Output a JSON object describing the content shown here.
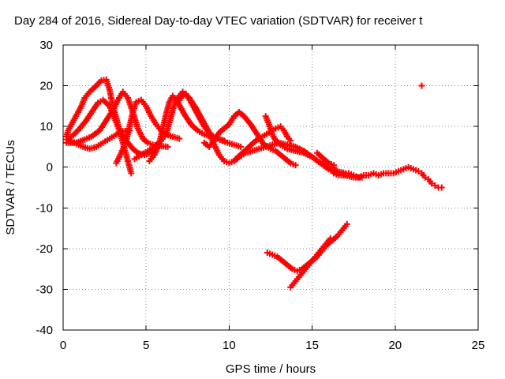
{
  "chart_data": {
    "type": "scatter",
    "title": "Day 284 of 2016, Sidereal Day-to-day VTEC variation (SDTVAR) for receiver t",
    "xlabel": "GPS time / hours",
    "ylabel": "SDTVAR / TECUs",
    "xlim": [
      0,
      25
    ],
    "ylim": [
      -40,
      30
    ],
    "x_ticks": [
      "0",
      "5",
      "10",
      "15",
      "20",
      "25"
    ],
    "y_ticks": [
      "-40",
      "-30",
      "-20",
      "-10",
      "0",
      "10",
      "20",
      "30"
    ],
    "grid": true,
    "marker": "+",
    "series_color": "#ff0000",
    "series": [
      {
        "points": [
          [
            0.2,
            7.5
          ],
          [
            0.3,
            9.0
          ],
          [
            0.5,
            10.5
          ],
          [
            0.7,
            12.0
          ],
          [
            0.9,
            13.5
          ],
          [
            1.1,
            15.0
          ],
          [
            1.3,
            17.0
          ],
          [
            1.6,
            18.5
          ],
          [
            2.0,
            20.0
          ],
          [
            2.3,
            21.3
          ],
          [
            2.6,
            21.5
          ],
          [
            2.8,
            19.0
          ],
          [
            3.0,
            15.0
          ],
          [
            3.2,
            12.0
          ],
          [
            3.4,
            9.0
          ],
          [
            3.6,
            6.0
          ],
          [
            3.8,
            3.0
          ],
          [
            4.0,
            0.0
          ],
          [
            4.1,
            -1.5
          ],
          [
            0.2,
            6.8
          ],
          [
            0.6,
            7.8
          ],
          [
            1.0,
            9.5
          ],
          [
            1.4,
            11.5
          ],
          [
            1.8,
            14.0
          ],
          [
            2.1,
            15.8
          ],
          [
            2.4,
            16.5
          ],
          [
            2.8,
            15.0
          ],
          [
            3.1,
            12.0
          ],
          [
            3.4,
            9.0
          ],
          [
            3.8,
            6.5
          ],
          [
            4.2,
            4.5
          ],
          [
            4.5,
            3.5
          ],
          [
            4.9,
            3.0
          ],
          [
            5.3,
            3.5
          ],
          [
            5.7,
            5.0
          ],
          [
            0.2,
            6.0
          ],
          [
            0.8,
            6.0
          ],
          [
            1.3,
            6.8
          ],
          [
            1.7,
            7.5
          ],
          [
            2.2,
            9.0
          ],
          [
            2.6,
            11.5
          ],
          [
            3.0,
            14.0
          ],
          [
            3.3,
            16.5
          ],
          [
            3.6,
            18.5
          ],
          [
            3.9,
            17.0
          ],
          [
            4.2,
            13.5
          ],
          [
            4.5,
            9.5
          ],
          [
            4.8,
            7.0
          ],
          [
            5.1,
            6.0
          ],
          [
            5.4,
            5.5
          ],
          [
            5.8,
            5.2
          ],
          [
            6.3,
            5.0
          ],
          [
            0.4,
            6.5
          ],
          [
            0.8,
            5.8
          ],
          [
            1.2,
            5.0
          ],
          [
            1.6,
            4.5
          ],
          [
            2.0,
            5.0
          ],
          [
            2.4,
            6.0
          ],
          [
            2.8,
            7.0
          ],
          [
            3.2,
            8.0
          ],
          [
            3.6,
            8.8
          ],
          [
            4.0,
            9.0
          ],
          [
            3.2,
            1.0
          ],
          [
            3.5,
            3.5
          ],
          [
            3.8,
            6.5
          ],
          [
            4.0,
            10.0
          ],
          [
            4.2,
            13.5
          ],
          [
            4.4,
            16.0
          ],
          [
            4.7,
            16.5
          ],
          [
            5.0,
            15.0
          ],
          [
            5.3,
            12.5
          ],
          [
            5.6,
            10.5
          ],
          [
            5.9,
            9.0
          ],
          [
            6.2,
            8.0
          ],
          [
            6.6,
            7.5
          ],
          [
            7.0,
            7.0
          ],
          [
            4.3,
            2.0
          ],
          [
            4.7,
            3.0
          ],
          [
            5.1,
            4.0
          ],
          [
            5.5,
            5.0
          ],
          [
            5.9,
            6.5
          ],
          [
            6.2,
            8.0
          ],
          [
            6.4,
            11.0
          ],
          [
            6.6,
            14.0
          ],
          [
            6.8,
            16.5
          ],
          [
            7.0,
            17.5
          ],
          [
            7.2,
            18.5
          ],
          [
            7.4,
            18.0
          ],
          [
            7.7,
            16.0
          ],
          [
            8.1,
            13.0
          ],
          [
            8.5,
            10.0
          ],
          [
            8.9,
            8.0
          ],
          [
            9.3,
            7.0
          ],
          [
            9.7,
            6.5
          ],
          [
            5.2,
            1.5
          ],
          [
            5.5,
            3.0
          ],
          [
            5.8,
            6.0
          ],
          [
            6.0,
            9.5
          ],
          [
            6.2,
            13.0
          ],
          [
            6.4,
            16.0
          ],
          [
            6.6,
            17.5
          ],
          [
            6.9,
            16.0
          ],
          [
            7.3,
            13.0
          ],
          [
            7.7,
            10.5
          ],
          [
            8.1,
            9.0
          ],
          [
            8.5,
            8.0
          ],
          [
            8.9,
            7.5
          ],
          [
            9.3,
            7.0
          ],
          [
            9.6,
            6.5
          ],
          [
            9.9,
            6.0
          ],
          [
            10.3,
            5.5
          ],
          [
            10.7,
            5.0
          ],
          [
            7.0,
            16.5
          ],
          [
            7.3,
            18.0
          ],
          [
            7.6,
            17.0
          ],
          [
            8.0,
            14.5
          ],
          [
            8.4,
            11.5
          ],
          [
            8.8,
            8.5
          ],
          [
            9.1,
            5.5
          ],
          [
            9.4,
            3.0
          ],
          [
            9.7,
            1.5
          ],
          [
            10.0,
            1.0
          ],
          [
            10.3,
            1.5
          ],
          [
            10.6,
            2.5
          ],
          [
            11.0,
            3.5
          ],
          [
            11.4,
            4.0
          ],
          [
            11.8,
            4.5
          ],
          [
            12.2,
            5.0
          ],
          [
            12.6,
            5.5
          ],
          [
            13.0,
            6.0
          ],
          [
            8.5,
            6.0
          ],
          [
            8.8,
            5.0
          ],
          [
            9.1,
            6.5
          ],
          [
            9.4,
            8.5
          ],
          [
            9.7,
            9.5
          ],
          [
            10.0,
            10.5
          ],
          [
            10.3,
            12.5
          ],
          [
            10.6,
            13.5
          ],
          [
            10.9,
            12.5
          ],
          [
            11.3,
            10.5
          ],
          [
            11.7,
            8.0
          ],
          [
            12.1,
            5.5
          ],
          [
            12.5,
            4.5
          ],
          [
            12.8,
            4.0
          ],
          [
            13.1,
            3.0
          ],
          [
            13.4,
            2.0
          ],
          [
            13.7,
            1.0
          ],
          [
            14.0,
            0.5
          ],
          [
            10.4,
            2.0
          ],
          [
            10.8,
            3.5
          ],
          [
            11.2,
            5.0
          ],
          [
            11.6,
            6.5
          ],
          [
            12.0,
            7.5
          ],
          [
            12.4,
            8.5
          ],
          [
            12.8,
            9.5
          ],
          [
            13.1,
            10.0
          ],
          [
            13.3,
            9.0
          ],
          [
            13.5,
            7.5
          ],
          [
            13.7,
            6.5
          ],
          [
            12.2,
            12.5
          ],
          [
            12.4,
            10.5
          ],
          [
            12.6,
            8.0
          ],
          [
            12.8,
            6.5
          ],
          [
            13.1,
            5.5
          ],
          [
            13.5,
            4.5
          ],
          [
            14.0,
            4.0
          ],
          [
            14.5,
            3.5
          ],
          [
            15.0,
            2.5
          ],
          [
            15.5,
            1.0
          ],
          [
            16.0,
            0.0
          ],
          [
            16.5,
            -1.0
          ],
          [
            17.0,
            -1.5
          ],
          [
            13.0,
            6.0
          ],
          [
            13.5,
            5.5
          ],
          [
            14.0,
            5.0
          ],
          [
            14.5,
            4.0
          ],
          [
            15.0,
            2.5
          ],
          [
            15.5,
            1.0
          ],
          [
            16.0,
            -0.5
          ],
          [
            16.5,
            -1.5
          ],
          [
            17.0,
            -2.0
          ],
          [
            17.5,
            -2.5
          ],
          [
            18.0,
            -2.5
          ],
          [
            15.3,
            3.5
          ],
          [
            15.7,
            2.0
          ],
          [
            16.0,
            1.0
          ],
          [
            16.3,
            0.5
          ],
          [
            16.3,
            -1.5
          ],
          [
            16.6,
            -2.0
          ],
          [
            16.9,
            -2.0
          ],
          [
            17.2,
            -1.5
          ],
          [
            17.5,
            -2.0
          ],
          [
            17.8,
            -2.5
          ],
          [
            18.1,
            -2.0
          ],
          [
            18.4,
            -2.0
          ],
          [
            18.7,
            -1.5
          ],
          [
            19.0,
            -2.0
          ],
          [
            19.3,
            -1.5
          ],
          [
            19.6,
            -1.5
          ],
          [
            19.9,
            -1.5
          ],
          [
            20.2,
            -1.0
          ],
          [
            20.5,
            -0.5
          ],
          [
            20.8,
            0.0
          ],
          [
            21.1,
            -0.5
          ],
          [
            21.4,
            -1.0
          ],
          [
            21.6,
            -1.5
          ],
          [
            21.8,
            -2.5
          ],
          [
            22.0,
            -3.0
          ],
          [
            22.2,
            -4.0
          ],
          [
            22.4,
            -4.5
          ],
          [
            22.6,
            -5.0
          ],
          [
            22.8,
            -5.0
          ],
          [
            21.6,
            20.0
          ],
          [
            12.3,
            -21.0
          ],
          [
            12.6,
            -21.5
          ],
          [
            12.9,
            -22.0
          ],
          [
            13.2,
            -23.0
          ],
          [
            13.5,
            -24.0
          ],
          [
            13.8,
            -25.0
          ],
          [
            14.1,
            -25.5
          ],
          [
            14.4,
            -25.0
          ],
          [
            14.7,
            -24.0
          ],
          [
            15.0,
            -23.0
          ],
          [
            15.3,
            -22.0
          ],
          [
            15.6,
            -20.5
          ],
          [
            15.9,
            -19.0
          ],
          [
            16.2,
            -18.0
          ],
          [
            16.5,
            -17.0
          ],
          [
            16.8,
            -15.5
          ],
          [
            17.1,
            -14.0
          ],
          [
            13.7,
            -29.5
          ],
          [
            13.9,
            -28.5
          ],
          [
            14.1,
            -27.5
          ],
          [
            14.3,
            -26.5
          ],
          [
            14.5,
            -25.5
          ],
          [
            14.7,
            -24.5
          ],
          [
            14.9,
            -23.5
          ],
          [
            15.1,
            -22.5
          ],
          [
            15.3,
            -21.5
          ],
          [
            15.5,
            -20.5
          ],
          [
            15.7,
            -19.5
          ],
          [
            15.9,
            -18.5
          ],
          [
            16.1,
            -17.5
          ]
        ]
      }
    ]
  }
}
